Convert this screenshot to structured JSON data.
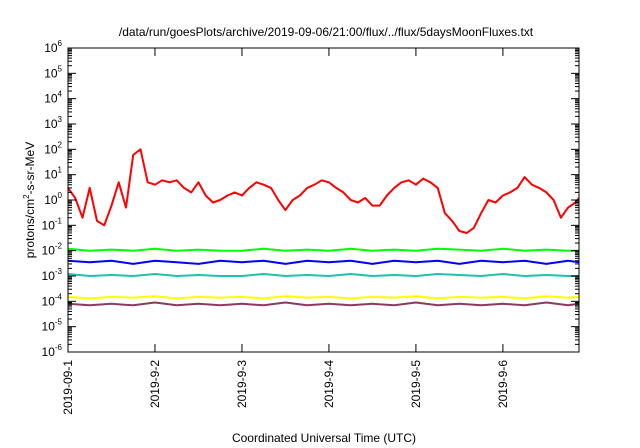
{
  "chart_data": {
    "type": "line",
    "title": "/data/run/goesPlots/archive/2019-09-06/21:00/flux/../flux/5daysMoonFluxes.txt",
    "xlabel": "Coordinated Universal Time (UTC)",
    "ylabel": "protons/cm²-s-sr-MeV",
    "ylabel_parts": {
      "main": "protons/cm",
      "sup": "2",
      "rest": "-s-sr-MeV"
    },
    "y_scale": "log",
    "ylim": [
      1e-06,
      1000000.0
    ],
    "y_ticks": [
      {
        "value": 1e-06,
        "base": "10",
        "exp": "-6"
      },
      {
        "value": 1e-05,
        "base": "10",
        "exp": "-5"
      },
      {
        "value": 0.0001,
        "base": "10",
        "exp": "-4"
      },
      {
        "value": 0.001,
        "base": "10",
        "exp": "-3"
      },
      {
        "value": 0.01,
        "base": "10",
        "exp": "-2"
      },
      {
        "value": 0.1,
        "base": "10",
        "exp": "-1"
      },
      {
        "value": 1,
        "base": "10",
        "exp": "0"
      },
      {
        "value": 10,
        "base": "10",
        "exp": "1"
      },
      {
        "value": 100,
        "base": "10",
        "exp": "2"
      },
      {
        "value": 1000,
        "base": "10",
        "exp": "3"
      },
      {
        "value": 10000,
        "base": "10",
        "exp": "4"
      },
      {
        "value": 100000,
        "base": "10",
        "exp": "5"
      },
      {
        "value": 1000000,
        "base": "10",
        "exp": "6"
      }
    ],
    "xlim": [
      "2019-09-01T00:00",
      "2019-09-06T21:00"
    ],
    "x_ticks": [
      {
        "date": "2019-09-01",
        "label": "2019-09-1"
      },
      {
        "date": "2019-09-02",
        "label": "2019-9-2"
      },
      {
        "date": "2019-09-03",
        "label": "2019-9-3"
      },
      {
        "date": "2019-09-04",
        "label": "2019-9-4"
      },
      {
        "date": "2019-09-05",
        "label": "2019-9-5"
      },
      {
        "date": "2019-09-06",
        "label": "2019-9-6"
      }
    ],
    "grid": false,
    "legend": "none",
    "series": [
      {
        "color": "#ff0000",
        "x": [
          "2019-09-01T00:00",
          "2019-09-01T02:00",
          "2019-09-01T04:00",
          "2019-09-01T06:00",
          "2019-09-01T08:00",
          "2019-09-01T10:00",
          "2019-09-01T12:00",
          "2019-09-01T14:00",
          "2019-09-01T16:00",
          "2019-09-01T18:00",
          "2019-09-01T20:00",
          "2019-09-01T22:00",
          "2019-09-02T00:00",
          "2019-09-02T02:00",
          "2019-09-02T04:00",
          "2019-09-02T06:00",
          "2019-09-02T08:00",
          "2019-09-02T10:00",
          "2019-09-02T12:00",
          "2019-09-02T14:00",
          "2019-09-02T16:00",
          "2019-09-02T18:00",
          "2019-09-02T20:00",
          "2019-09-02T22:00",
          "2019-09-03T00:00",
          "2019-09-03T02:00",
          "2019-09-03T04:00",
          "2019-09-03T06:00",
          "2019-09-03T08:00",
          "2019-09-03T10:00",
          "2019-09-03T12:00",
          "2019-09-03T14:00",
          "2019-09-03T16:00",
          "2019-09-03T18:00",
          "2019-09-03T20:00",
          "2019-09-03T22:00",
          "2019-09-04T00:00",
          "2019-09-04T02:00",
          "2019-09-04T04:00",
          "2019-09-04T06:00",
          "2019-09-04T08:00",
          "2019-09-04T10:00",
          "2019-09-04T12:00",
          "2019-09-04T14:00",
          "2019-09-04T16:00",
          "2019-09-04T18:00",
          "2019-09-04T20:00",
          "2019-09-04T22:00",
          "2019-09-05T00:00",
          "2019-09-05T02:00",
          "2019-09-05T04:00",
          "2019-09-05T06:00",
          "2019-09-05T08:00",
          "2019-09-05T10:00",
          "2019-09-05T12:00",
          "2019-09-05T14:00",
          "2019-09-05T16:00",
          "2019-09-05T18:00",
          "2019-09-05T20:00",
          "2019-09-05T22:00",
          "2019-09-06T00:00",
          "2019-09-06T02:00",
          "2019-09-06T04:00",
          "2019-09-06T06:00",
          "2019-09-06T08:00",
          "2019-09-06T10:00",
          "2019-09-06T12:00",
          "2019-09-06T14:00",
          "2019-09-06T16:00",
          "2019-09-06T18:00",
          "2019-09-06T20:00",
          "2019-09-06T21:00"
        ],
        "values": [
          3.0,
          1.2,
          0.2,
          3.0,
          0.15,
          0.1,
          0.6,
          5.0,
          0.5,
          60,
          100,
          5.0,
          4.0,
          6.0,
          5.0,
          6.0,
          3.0,
          2.0,
          5.0,
          1.5,
          0.8,
          1.0,
          1.5,
          2.0,
          1.5,
          3.0,
          5.0,
          4.0,
          3.0,
          1.0,
          0.4,
          1.0,
          1.5,
          3.0,
          4.0,
          6.0,
          5.0,
          3.0,
          2.0,
          1.0,
          0.8,
          1.2,
          0.6,
          0.6,
          1.5,
          3.0,
          5.0,
          6.0,
          4.0,
          7.0,
          5.0,
          3.0,
          0.3,
          0.15,
          0.06,
          0.05,
          0.08,
          0.3,
          1.0,
          0.8,
          1.5,
          2.0,
          3.0,
          8.0,
          4.0,
          3.0,
          2.0,
          1.0,
          0.2,
          0.5,
          0.8,
          1.2
        ]
      },
      {
        "color": "#00ff00",
        "x": [
          "2019-09-01T00:00",
          "2019-09-01T06:00",
          "2019-09-01T12:00",
          "2019-09-01T18:00",
          "2019-09-02T00:00",
          "2019-09-02T06:00",
          "2019-09-02T12:00",
          "2019-09-02T18:00",
          "2019-09-03T00:00",
          "2019-09-03T06:00",
          "2019-09-03T12:00",
          "2019-09-03T18:00",
          "2019-09-04T00:00",
          "2019-09-04T06:00",
          "2019-09-04T12:00",
          "2019-09-04T18:00",
          "2019-09-05T00:00",
          "2019-09-05T06:00",
          "2019-09-05T12:00",
          "2019-09-05T18:00",
          "2019-09-06T00:00",
          "2019-09-06T06:00",
          "2019-09-06T12:00",
          "2019-09-06T18:00",
          "2019-09-06T21:00"
        ],
        "values": [
          0.012,
          0.01,
          0.011,
          0.01,
          0.012,
          0.01,
          0.011,
          0.01,
          0.01,
          0.012,
          0.01,
          0.011,
          0.01,
          0.012,
          0.01,
          0.011,
          0.01,
          0.012,
          0.011,
          0.01,
          0.012,
          0.01,
          0.011,
          0.01,
          0.01
        ]
      },
      {
        "color": "#0000ff",
        "x": [
          "2019-09-01T00:00",
          "2019-09-01T06:00",
          "2019-09-01T12:00",
          "2019-09-01T18:00",
          "2019-09-02T00:00",
          "2019-09-02T06:00",
          "2019-09-02T12:00",
          "2019-09-02T18:00",
          "2019-09-03T00:00",
          "2019-09-03T06:00",
          "2019-09-03T12:00",
          "2019-09-03T18:00",
          "2019-09-04T00:00",
          "2019-09-04T06:00",
          "2019-09-04T12:00",
          "2019-09-04T18:00",
          "2019-09-05T00:00",
          "2019-09-05T06:00",
          "2019-09-05T12:00",
          "2019-09-05T18:00",
          "2019-09-06T00:00",
          "2019-09-06T06:00",
          "2019-09-06T12:00",
          "2019-09-06T18:00",
          "2019-09-06T21:00"
        ],
        "values": [
          0.004,
          0.0035,
          0.004,
          0.003,
          0.004,
          0.0035,
          0.003,
          0.004,
          0.0035,
          0.004,
          0.003,
          0.004,
          0.0035,
          0.004,
          0.003,
          0.004,
          0.0035,
          0.004,
          0.003,
          0.004,
          0.0035,
          0.004,
          0.003,
          0.004,
          0.0035
        ]
      },
      {
        "color": "#20c0b0",
        "x": [
          "2019-09-01T00:00",
          "2019-09-01T06:00",
          "2019-09-01T12:00",
          "2019-09-01T18:00",
          "2019-09-02T00:00",
          "2019-09-02T06:00",
          "2019-09-02T12:00",
          "2019-09-02T18:00",
          "2019-09-03T00:00",
          "2019-09-03T06:00",
          "2019-09-03T12:00",
          "2019-09-03T18:00",
          "2019-09-04T00:00",
          "2019-09-04T06:00",
          "2019-09-04T12:00",
          "2019-09-04T18:00",
          "2019-09-05T00:00",
          "2019-09-05T06:00",
          "2019-09-05T12:00",
          "2019-09-05T18:00",
          "2019-09-06T00:00",
          "2019-09-06T06:00",
          "2019-09-06T12:00",
          "2019-09-06T18:00",
          "2019-09-06T21:00"
        ],
        "values": [
          0.0012,
          0.001,
          0.0011,
          0.001,
          0.0012,
          0.001,
          0.0011,
          0.001,
          0.001,
          0.0012,
          0.001,
          0.0011,
          0.001,
          0.0012,
          0.001,
          0.0011,
          0.001,
          0.0012,
          0.0011,
          0.001,
          0.0012,
          0.001,
          0.0011,
          0.001,
          0.001
        ]
      },
      {
        "color": "#ffff00",
        "x": [
          "2019-09-01T00:00",
          "2019-09-01T06:00",
          "2019-09-01T12:00",
          "2019-09-01T18:00",
          "2019-09-02T00:00",
          "2019-09-02T06:00",
          "2019-09-02T12:00",
          "2019-09-02T18:00",
          "2019-09-03T00:00",
          "2019-09-03T06:00",
          "2019-09-03T12:00",
          "2019-09-03T18:00",
          "2019-09-04T00:00",
          "2019-09-04T06:00",
          "2019-09-04T12:00",
          "2019-09-04T18:00",
          "2019-09-05T00:00",
          "2019-09-05T06:00",
          "2019-09-05T12:00",
          "2019-09-05T18:00",
          "2019-09-06T00:00",
          "2019-09-06T06:00",
          "2019-09-06T12:00",
          "2019-09-06T18:00",
          "2019-09-06T21:00"
        ],
        "values": [
          0.00015,
          0.00013,
          0.00015,
          0.00014,
          0.00016,
          0.00013,
          0.00015,
          0.00014,
          0.00015,
          0.00013,
          0.00016,
          0.00014,
          0.00015,
          0.00013,
          0.00015,
          0.00014,
          0.00016,
          0.00013,
          0.00015,
          0.00014,
          0.00015,
          0.00013,
          0.00016,
          0.00014,
          0.00015
        ]
      },
      {
        "color": "#8b3a62",
        "x": [
          "2019-09-01T00:00",
          "2019-09-01T06:00",
          "2019-09-01T12:00",
          "2019-09-01T18:00",
          "2019-09-02T00:00",
          "2019-09-02T06:00",
          "2019-09-02T12:00",
          "2019-09-02T18:00",
          "2019-09-03T00:00",
          "2019-09-03T06:00",
          "2019-09-03T12:00",
          "2019-09-03T18:00",
          "2019-09-04T00:00",
          "2019-09-04T06:00",
          "2019-09-04T12:00",
          "2019-09-04T18:00",
          "2019-09-05T00:00",
          "2019-09-05T06:00",
          "2019-09-05T12:00",
          "2019-09-05T18:00",
          "2019-09-06T00:00",
          "2019-09-06T06:00",
          "2019-09-06T12:00",
          "2019-09-06T18:00",
          "2019-09-06T21:00"
        ],
        "values": [
          8e-05,
          7e-05,
          8e-05,
          7e-05,
          9e-05,
          7e-05,
          8e-05,
          7e-05,
          8e-05,
          7e-05,
          9e-05,
          7e-05,
          8e-05,
          7e-05,
          8e-05,
          7e-05,
          9e-05,
          7e-05,
          8e-05,
          7e-05,
          8e-05,
          7e-05,
          9e-05,
          7e-05,
          8e-05
        ]
      }
    ]
  }
}
